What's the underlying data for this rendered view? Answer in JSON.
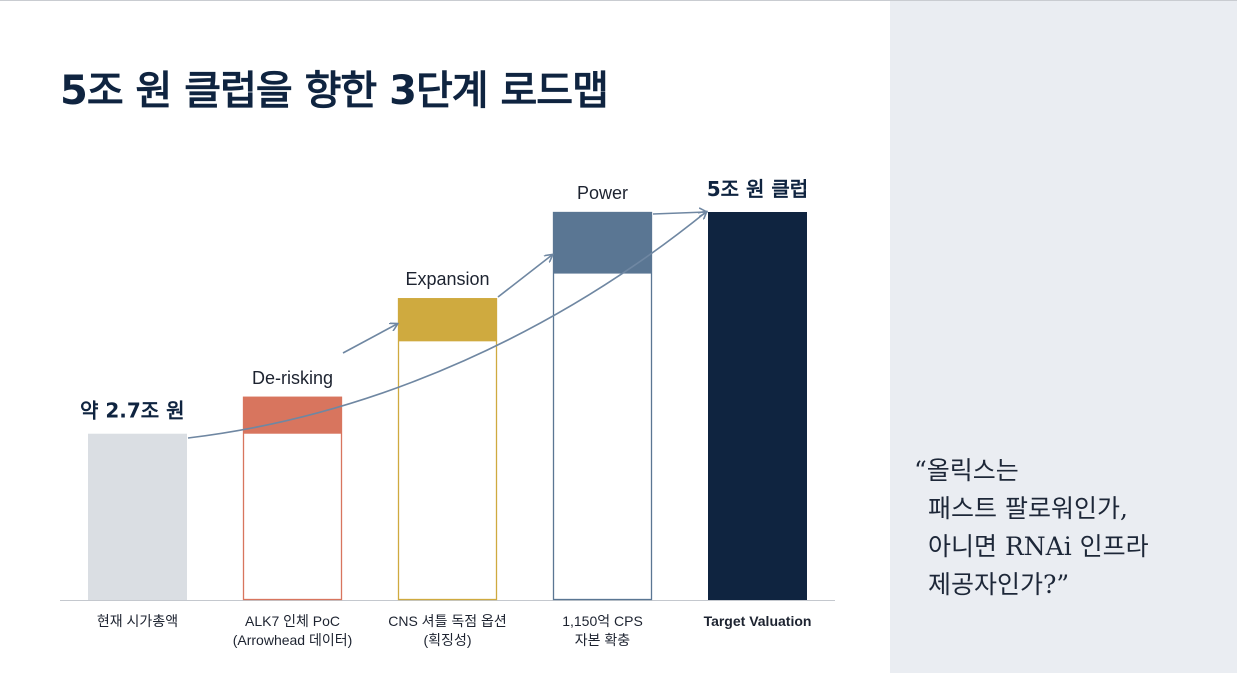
{
  "slide": {
    "title": "5조 원 클럽을 향한 3단계 로드맵",
    "quote_lines": [
      "“올릭스는",
      "패스트 팔로워인가,",
      "아니면 RNAi 인프라",
      "제공자인가?”"
    ]
  },
  "colors": {
    "title": "#0f2440",
    "sidebar_bg": "#eaedf2",
    "arrow": "#6f87a2"
  },
  "chart_data": {
    "type": "bar",
    "categories": [
      [
        "현재 시가총액"
      ],
      [
        "ALK7 인체 PoC",
        "(Arrowhead 데이터)"
      ],
      [
        "CNS 셔틀 독점 옵션",
        "(획징성)"
      ],
      [
        "1,150억 CPS",
        "자본 확충"
      ],
      [
        "Target Valuation"
      ]
    ],
    "units": "조 원",
    "bars": [
      {
        "base": 0,
        "top": 2.7,
        "stage": "",
        "fill": "#dadee3",
        "outline": null,
        "top_label": "약 2.7조 원"
      },
      {
        "base": 2.7,
        "top": 3.3,
        "stage": "De-risking",
        "fill": "#d8755e",
        "outline": "#d8755e",
        "top_label": ""
      },
      {
        "base": 4.2,
        "top": 4.9,
        "stage": "Expansion",
        "fill": "#cfaa3f",
        "outline": "#cfaa3f",
        "top_label": ""
      },
      {
        "base": 5.3,
        "top": 6.3,
        "stage": "Power",
        "fill": "#5a7693",
        "outline": "#5a7693",
        "top_label": ""
      },
      {
        "base": 0,
        "top": 6.3,
        "stage": "",
        "fill": "#0f2440",
        "outline": null,
        "top_label": "5조 원 클럽"
      }
    ],
    "ylim": [
      0,
      6.3
    ]
  }
}
